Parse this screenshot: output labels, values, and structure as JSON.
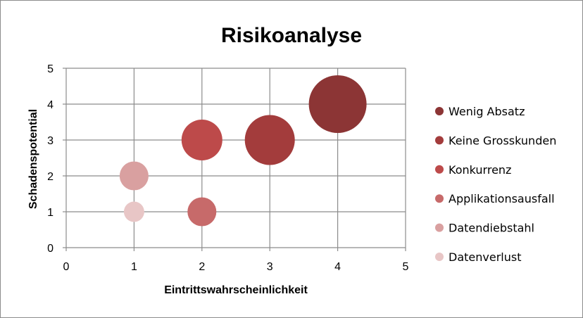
{
  "chart_data": {
    "type": "bubble",
    "title": "Risikoanalyse",
    "xlabel": "Eintrittswahrscheinlichkeit",
    "ylabel": "Schadenspotential",
    "xlim": [
      0,
      5
    ],
    "ylim": [
      0,
      5
    ],
    "xticks": [
      "0",
      "1",
      "2",
      "3",
      "4",
      "5"
    ],
    "yticks": [
      "0",
      "1",
      "2",
      "3",
      "4",
      "5"
    ],
    "grid": true,
    "legend_position": "right",
    "series": [
      {
        "name": "Wenig Absatz",
        "color": "#8c3535",
        "points": [
          {
            "x": 4,
            "y": 4,
            "size": 4
          }
        ]
      },
      {
        "name": "Keine Grosskunden",
        "color": "#a33c3c",
        "points": [
          {
            "x": 3,
            "y": 3,
            "size": 3
          }
        ]
      },
      {
        "name": "Konkurrenz",
        "color": "#bd4a4a",
        "points": [
          {
            "x": 2,
            "y": 3,
            "size": 2
          }
        ]
      },
      {
        "name": "Applikationsausfall",
        "color": "#c76a6a",
        "points": [
          {
            "x": 2,
            "y": 1,
            "size": 1
          }
        ]
      },
      {
        "name": "Datendiebstahl",
        "color": "#d9a0a0",
        "points": [
          {
            "x": 1,
            "y": 2,
            "size": 1
          }
        ]
      },
      {
        "name": "Datenverlust",
        "color": "#e8c6c6",
        "points": [
          {
            "x": 1,
            "y": 1,
            "size": 0.5
          }
        ]
      }
    ]
  }
}
